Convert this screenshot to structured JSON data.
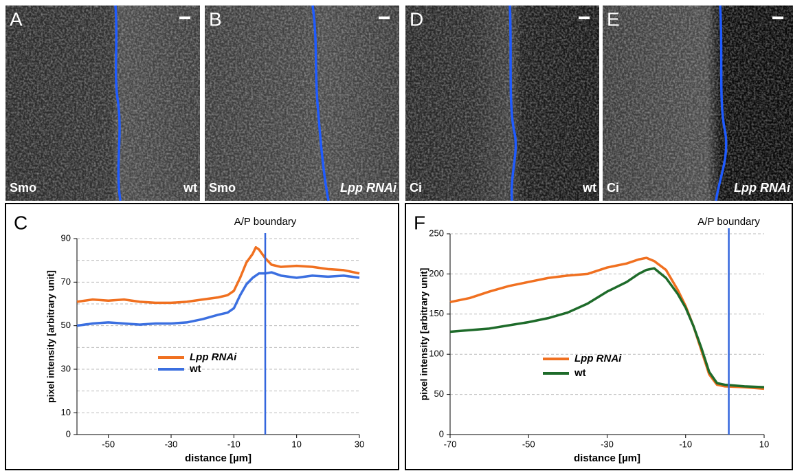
{
  "panels": [
    {
      "letter": "A",
      "stain": "Smo",
      "genotype": "wt"
    },
    {
      "letter": "B",
      "stain": "Smo",
      "genotype": "Lpp RNAi"
    },
    {
      "letter": "D",
      "stain": "Ci",
      "genotype": "wt"
    },
    {
      "letter": "E",
      "stain": "Ci",
      "genotype": "Lpp RNAi"
    }
  ],
  "chart_data": [
    {
      "type": "line",
      "label": "C",
      "title": "A/P boundary",
      "boundary": 0,
      "x_label": "distance [µm]",
      "y_label": "pixel intensity [arbitrary unit]",
      "x": [
        -60,
        -55,
        -50,
        -45,
        -40,
        -35,
        -30,
        -25,
        -20,
        -15,
        -12,
        -10,
        -8,
        -6,
        -4,
        -3,
        -2,
        0,
        2,
        5,
        10,
        15,
        20,
        25,
        30
      ],
      "series": [
        {
          "name": "Lpp RNAi",
          "color": "#f07020",
          "values": [
            61,
            62,
            61.5,
            62,
            61,
            60.5,
            60.5,
            61,
            62,
            63,
            64,
            66,
            72,
            79,
            83,
            86,
            85,
            81,
            78,
            77,
            77.5,
            77,
            76,
            75.5,
            74
          ]
        },
        {
          "name": "wt",
          "color": "#3b6fe0",
          "values": [
            50,
            51,
            51.5,
            51,
            50.5,
            51,
            51,
            51.5,
            53,
            55,
            56,
            58,
            64,
            69,
            72,
            73,
            74,
            74,
            74.5,
            73,
            72,
            73,
            72.5,
            73,
            72
          ]
        }
      ],
      "xlim": [
        -60,
        30
      ],
      "xticks": [
        -50,
        -30,
        -10,
        10,
        30
      ],
      "ylim": [
        0,
        90
      ],
      "yticks": [
        0,
        10,
        30,
        50,
        70,
        90
      ],
      "ygrid_minor": [
        20,
        40,
        60,
        80
      ],
      "grid": true
    },
    {
      "type": "line",
      "label": "F",
      "title": "A/P boundary",
      "boundary": 1,
      "x_label": "distance [µm]",
      "y_label": "pixel intensity [arbitrary unit]",
      "x": [
        -70,
        -65,
        -60,
        -55,
        -50,
        -45,
        -40,
        -35,
        -30,
        -25,
        -22,
        -20,
        -18,
        -15,
        -12,
        -10,
        -8,
        -6,
        -4,
        -2,
        0,
        5,
        10
      ],
      "series": [
        {
          "name": "Lpp RNAi",
          "color": "#f07020",
          "values": [
            165,
            170,
            178,
            185,
            190,
            195,
            198,
            200,
            208,
            213,
            218,
            220,
            216,
            205,
            180,
            160,
            135,
            105,
            75,
            62,
            60,
            59,
            57
          ]
        },
        {
          "name": "wt",
          "color": "#1e6b2a",
          "values": [
            128,
            130,
            132,
            136,
            140,
            145,
            152,
            163,
            178,
            190,
            200,
            205,
            207,
            195,
            175,
            158,
            135,
            108,
            78,
            64,
            62,
            60,
            59
          ]
        }
      ],
      "xlim": [
        -70,
        10
      ],
      "xticks": [
        -70,
        -50,
        -30,
        -10,
        10
      ],
      "ylim": [
        0,
        250
      ],
      "yticks": [
        0,
        50,
        100,
        150,
        200,
        250
      ],
      "grid": true
    }
  ]
}
